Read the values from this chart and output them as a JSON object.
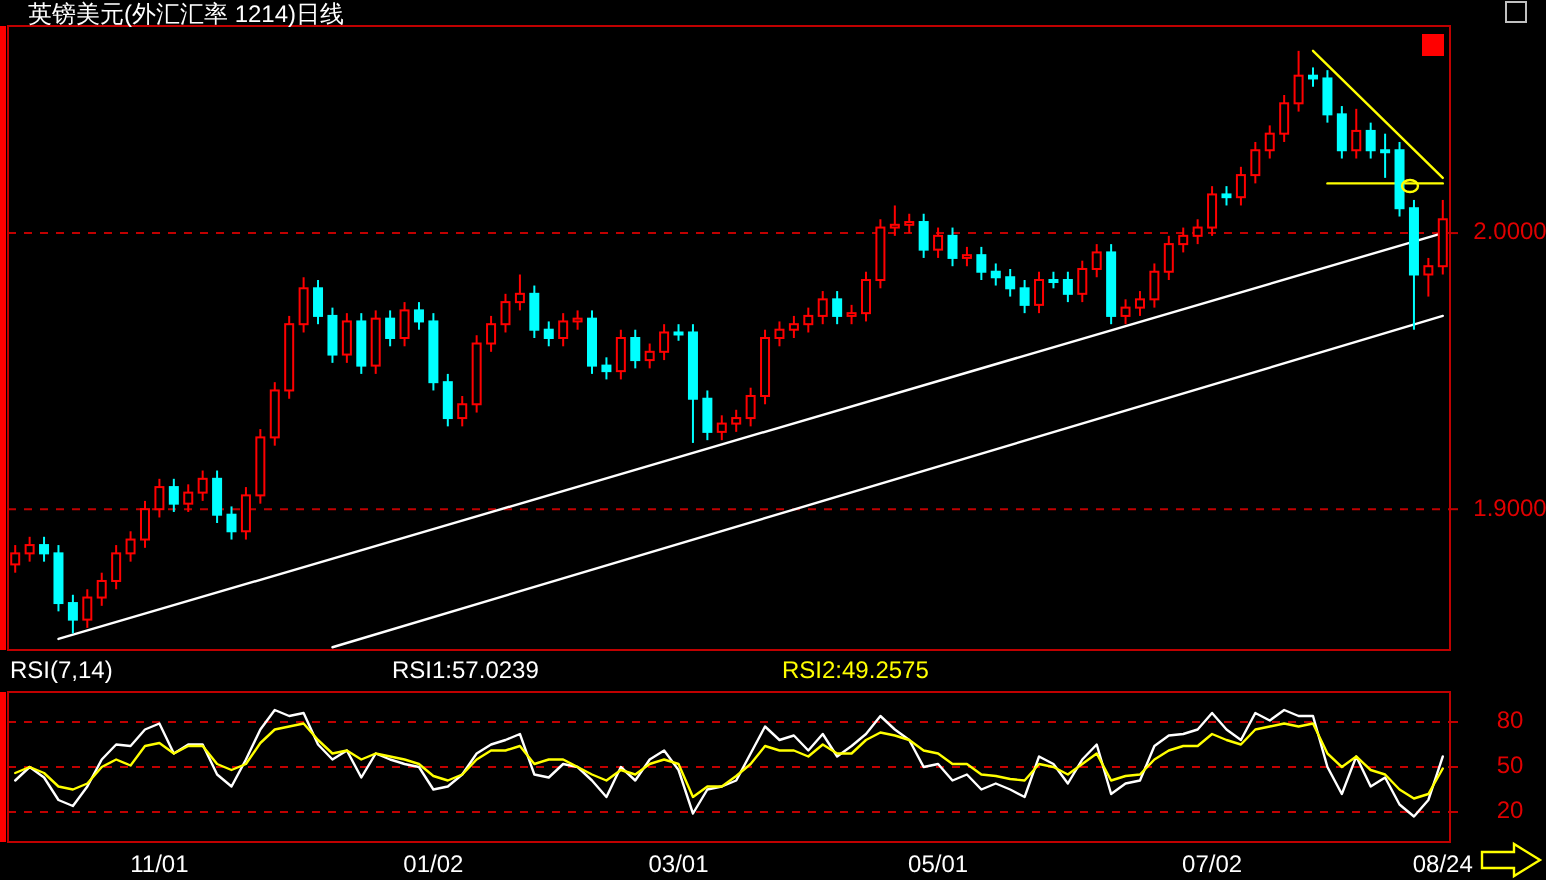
{
  "chart_data": [
    {
      "type": "candlestick",
      "title": "英镑美元(外汇汇率 1214)日线",
      "categories": [
        null,
        null,
        null,
        null,
        null,
        null,
        null,
        null,
        null,
        null,
        null,
        null,
        null,
        null,
        null,
        null,
        null,
        null,
        null,
        null,
        null,
        null,
        null,
        null,
        null,
        null,
        null,
        null,
        null,
        null,
        null,
        null,
        null,
        null,
        null,
        null,
        null,
        null,
        null,
        null,
        null,
        null,
        null,
        null,
        null,
        null,
        null,
        null,
        null,
        null,
        null,
        null,
        null,
        null,
        null,
        null,
        null,
        null,
        null,
        null,
        null,
        null,
        null,
        null,
        null,
        null,
        null,
        null,
        null,
        null,
        null,
        null,
        null,
        null,
        null,
        null,
        null,
        null,
        null,
        null,
        null,
        null,
        null,
        null,
        null,
        null,
        null,
        null,
        null,
        null,
        null,
        null,
        null,
        null,
        null,
        null,
        null,
        null,
        null,
        null
      ],
      "ohlc": [
        [
          1.88,
          1.887,
          1.877,
          1.884
        ],
        [
          1.884,
          1.89,
          1.881,
          1.887
        ],
        [
          1.887,
          1.89,
          1.881,
          1.884
        ],
        [
          1.884,
          1.887,
          1.863,
          1.866
        ],
        [
          1.866,
          1.869,
          1.855,
          1.86
        ],
        [
          1.86,
          1.871,
          1.857,
          1.868
        ],
        [
          1.868,
          1.877,
          1.865,
          1.874
        ],
        [
          1.874,
          1.887,
          1.871,
          1.884
        ],
        [
          1.884,
          1.892,
          1.881,
          1.889
        ],
        [
          1.889,
          1.903,
          1.886,
          1.9
        ],
        [
          1.9,
          1.911,
          1.897,
          1.908
        ],
        [
          1.908,
          1.911,
          1.899,
          1.902
        ],
        [
          1.902,
          1.909,
          1.899,
          1.906
        ],
        [
          1.906,
          1.914,
          1.903,
          1.911
        ],
        [
          1.911,
          1.914,
          1.895,
          1.898
        ],
        [
          1.898,
          1.901,
          1.889,
          1.892
        ],
        [
          1.892,
          1.908,
          1.889,
          1.905
        ],
        [
          1.905,
          1.929,
          1.902,
          1.926
        ],
        [
          1.926,
          1.946,
          1.923,
          1.943
        ],
        [
          1.943,
          1.97,
          1.94,
          1.967
        ],
        [
          1.967,
          1.984,
          1.964,
          1.98
        ],
        [
          1.98,
          1.983,
          1.967,
          1.97
        ],
        [
          1.97,
          1.973,
          1.953,
          1.956
        ],
        [
          1.956,
          1.971,
          1.953,
          1.968
        ],
        [
          1.968,
          1.971,
          1.949,
          1.952
        ],
        [
          1.952,
          1.972,
          1.949,
          1.969
        ],
        [
          1.969,
          1.972,
          1.959,
          1.962
        ],
        [
          1.962,
          1.975,
          1.959,
          1.972
        ],
        [
          1.972,
          1.975,
          1.965,
          1.968
        ],
        [
          1.968,
          1.971,
          1.943,
          1.946
        ],
        [
          1.946,
          1.949,
          1.93,
          1.933
        ],
        [
          1.933,
          1.941,
          1.93,
          1.938
        ],
        [
          1.938,
          1.963,
          1.935,
          1.96
        ],
        [
          1.96,
          1.97,
          1.957,
          1.967
        ],
        [
          1.967,
          1.978,
          1.964,
          1.975
        ],
        [
          1.975,
          1.985,
          1.972,
          1.978
        ],
        [
          1.978,
          1.981,
          1.962,
          1.965
        ],
        [
          1.965,
          1.968,
          1.959,
          1.962
        ],
        [
          1.962,
          1.971,
          1.959,
          1.968
        ],
        [
          1.968,
          1.972,
          1.965,
          1.969
        ],
        [
          1.969,
          1.972,
          1.949,
          1.952
        ],
        [
          1.952,
          1.955,
          1.947,
          1.95
        ],
        [
          1.95,
          1.965,
          1.947,
          1.962
        ],
        [
          1.962,
          1.965,
          1.951,
          1.954
        ],
        [
          1.954,
          1.96,
          1.951,
          1.957
        ],
        [
          1.957,
          1.967,
          1.954,
          1.964
        ],
        [
          1.964,
          1.967,
          1.961,
          1.964
        ],
        [
          1.964,
          1.967,
          1.924,
          1.94
        ],
        [
          1.94,
          1.943,
          1.925,
          1.928
        ],
        [
          1.928,
          1.934,
          1.925,
          1.931
        ],
        [
          1.931,
          1.936,
          1.928,
          1.933
        ],
        [
          1.933,
          1.944,
          1.93,
          1.941
        ],
        [
          1.941,
          1.965,
          1.938,
          1.962
        ],
        [
          1.962,
          1.968,
          1.959,
          1.965
        ],
        [
          1.965,
          1.97,
          1.962,
          1.967
        ],
        [
          1.967,
          1.973,
          1.964,
          1.97
        ],
        [
          1.97,
          1.979,
          1.967,
          1.976
        ],
        [
          1.976,
          1.979,
          1.967,
          1.97
        ],
        [
          1.97,
          1.974,
          1.967,
          1.971
        ],
        [
          1.971,
          1.986,
          1.968,
          1.983
        ],
        [
          1.983,
          2.005,
          1.98,
          2.002
        ],
        [
          2.002,
          2.01,
          1.999,
          2.003
        ],
        [
          2.003,
          2.007,
          2.0,
          2.004
        ],
        [
          2.004,
          2.007,
          1.991,
          1.994
        ],
        [
          1.994,
          2.002,
          1.991,
          1.999
        ],
        [
          1.999,
          2.002,
          1.988,
          1.991
        ],
        [
          1.991,
          1.995,
          1.988,
          1.992
        ],
        [
          1.992,
          1.995,
          1.983,
          1.986
        ],
        [
          1.986,
          1.989,
          1.981,
          1.984
        ],
        [
          1.984,
          1.987,
          1.977,
          1.98
        ],
        [
          1.98,
          1.983,
          1.971,
          1.974
        ],
        [
          1.974,
          1.986,
          1.971,
          1.983
        ],
        [
          1.983,
          1.986,
          1.98,
          1.983
        ],
        [
          1.983,
          1.986,
          1.975,
          1.978
        ],
        [
          1.978,
          1.99,
          1.975,
          1.987
        ],
        [
          1.987,
          1.996,
          1.984,
          1.993
        ],
        [
          1.993,
          1.996,
          1.967,
          1.97
        ],
        [
          1.97,
          1.976,
          1.967,
          1.973
        ],
        [
          1.973,
          1.979,
          1.97,
          1.976
        ],
        [
          1.976,
          1.989,
          1.973,
          1.986
        ],
        [
          1.986,
          1.999,
          1.983,
          1.996
        ],
        [
          1.996,
          2.002,
          1.993,
          1.999
        ],
        [
          1.999,
          2.005,
          1.996,
          2.002
        ],
        [
          2.002,
          2.017,
          1.999,
          2.014
        ],
        [
          2.014,
          2.017,
          2.01,
          2.013
        ],
        [
          2.013,
          2.024,
          2.01,
          2.021
        ],
        [
          2.021,
          2.033,
          2.018,
          2.03
        ],
        [
          2.03,
          2.039,
          2.027,
          2.036
        ],
        [
          2.036,
          2.05,
          2.033,
          2.047
        ],
        [
          2.047,
          2.066,
          2.044,
          2.057
        ],
        [
          2.057,
          2.06,
          2.053,
          2.056
        ],
        [
          2.056,
          2.059,
          2.04,
          2.043
        ],
        [
          2.043,
          2.046,
          2.027,
          2.03
        ],
        [
          2.03,
          2.045,
          2.027,
          2.037
        ],
        [
          2.037,
          2.04,
          2.027,
          2.03
        ],
        [
          2.03,
          2.036,
          2.02,
          2.03
        ],
        [
          2.03,
          2.033,
          2.006,
          2.009
        ],
        [
          2.009,
          2.012,
          1.965,
          1.985
        ],
        [
          1.985,
          1.991,
          1.977,
          1.988
        ],
        [
          1.988,
          2.012,
          1.985,
          2.005
        ]
      ],
      "colors": [
        "#ff0000",
        "#ff0000",
        "#00ffff",
        "#00ffff",
        "#00ffff",
        "#ff0000",
        "#ff0000",
        "#ff0000",
        "#ff0000",
        "#ff0000",
        "#ff0000",
        "#00ffff",
        "#ff0000",
        "#ff0000",
        "#00ffff",
        "#00ffff",
        "#ff0000",
        "#ff0000",
        "#ff0000",
        "#ff0000",
        "#ff0000",
        "#00ffff",
        "#00ffff",
        "#ff0000",
        "#00ffff",
        "#ff0000",
        "#00ffff",
        "#ff0000",
        "#00ffff",
        "#00ffff",
        "#00ffff",
        "#ff0000",
        "#ff0000",
        "#ff0000",
        "#ff0000",
        "#ff0000",
        "#00ffff",
        "#00ffff",
        "#ff0000",
        "#ff0000",
        "#00ffff",
        "#00ffff",
        "#ff0000",
        "#00ffff",
        "#ff0000",
        "#ff0000",
        "#00ffff",
        "#00ffff",
        "#00ffff",
        "#ff0000",
        "#ff0000",
        "#ff0000",
        "#ff0000",
        "#ff0000",
        "#ff0000",
        "#ff0000",
        "#ff0000",
        "#00ffff",
        "#ff0000",
        "#ff0000",
        "#ff0000",
        "#ff0000",
        "#ff0000",
        "#00ffff",
        "#ff0000",
        "#00ffff",
        "#ff0000",
        "#00ffff",
        "#00ffff",
        "#00ffff",
        "#00ffff",
        "#ff0000",
        "#00ffff",
        "#00ffff",
        "#ff0000",
        "#ff0000",
        "#00ffff",
        "#ff0000",
        "#ff0000",
        "#ff0000",
        "#ff0000",
        "#ff0000",
        "#ff0000",
        "#ff0000",
        "#00ffff",
        "#ff0000",
        "#ff0000",
        "#ff0000",
        "#ff0000",
        "#ff0000",
        "#00ffff",
        "#00ffff",
        "#00ffff",
        "#ff0000",
        "#00ffff",
        "#00ffff",
        "#00ffff",
        "#00ffff",
        "#ff0000",
        "#ff0000"
      ],
      "series": [
        {
          "type": "line",
          "color": "#ffffff",
          "values": [
            null,
            null,
            null,
            1.853,
            null,
            null,
            null,
            null,
            null,
            null,
            null,
            null,
            null,
            null,
            null,
            null,
            null,
            null,
            null,
            null,
            null,
            null,
            null,
            null,
            null,
            null,
            null,
            null,
            null,
            null,
            null,
            null,
            null,
            null,
            null,
            null,
            null,
            null,
            null,
            null,
            null,
            null,
            null,
            null,
            null,
            null,
            null,
            null,
            null,
            null,
            null,
            null,
            null,
            null,
            null,
            null,
            null,
            null,
            null,
            null,
            null,
            null,
            null,
            null,
            null,
            null,
            null,
            null,
            null,
            null,
            null,
            null,
            null,
            null,
            null,
            null,
            null,
            null,
            null,
            null,
            null,
            null,
            null,
            null,
            null,
            null,
            null,
            null,
            null,
            null,
            null,
            null,
            null,
            null,
            null,
            null,
            null,
            null,
            null,
            2.0
          ]
        },
        {
          "type": "line",
          "color": "#ffffff",
          "values": [
            null,
            null,
            null,
            null,
            null,
            null,
            null,
            null,
            null,
            null,
            null,
            null,
            null,
            null,
            null,
            null,
            null,
            null,
            null,
            null,
            null,
            null,
            1.85,
            null,
            null,
            null,
            null,
            null,
            null,
            null,
            null,
            null,
            null,
            null,
            null,
            null,
            null,
            null,
            null,
            null,
            null,
            null,
            null,
            null,
            null,
            null,
            null,
            null,
            null,
            null,
            null,
            null,
            null,
            null,
            null,
            null,
            null,
            null,
            null,
            null,
            null,
            null,
            null,
            null,
            null,
            null,
            null,
            null,
            null,
            null,
            null,
            null,
            null,
            null,
            null,
            null,
            null,
            null,
            null,
            null,
            null,
            null,
            null,
            null,
            null,
            null,
            null,
            null,
            null,
            null,
            null,
            null,
            null,
            null,
            null,
            null,
            null,
            null,
            null,
            1.97
          ]
        },
        {
          "type": "line",
          "color": "#ffff00",
          "values": [
            null,
            null,
            null,
            null,
            null,
            null,
            null,
            null,
            null,
            null,
            null,
            null,
            null,
            null,
            null,
            null,
            null,
            null,
            null,
            null,
            null,
            null,
            null,
            null,
            null,
            null,
            null,
            null,
            null,
            null,
            null,
            null,
            null,
            null,
            null,
            null,
            null,
            null,
            null,
            null,
            null,
            null,
            null,
            null,
            null,
            null,
            null,
            null,
            null,
            null,
            null,
            null,
            null,
            null,
            null,
            null,
            null,
            null,
            null,
            null,
            null,
            null,
            null,
            null,
            null,
            null,
            null,
            null,
            null,
            null,
            null,
            null,
            null,
            null,
            null,
            null,
            null,
            null,
            null,
            null,
            null,
            null,
            null,
            null,
            null,
            null,
            null,
            null,
            null,
            null,
            2.066,
            null,
            null,
            null,
            null,
            null,
            null,
            null,
            null,
            2.02
          ]
        },
        {
          "type": "line",
          "color": "#ffff00",
          "values": [
            null,
            null,
            null,
            null,
            null,
            null,
            null,
            null,
            null,
            null,
            null,
            null,
            null,
            null,
            null,
            null,
            null,
            null,
            null,
            null,
            null,
            null,
            null,
            null,
            null,
            null,
            null,
            null,
            null,
            null,
            null,
            null,
            null,
            null,
            null,
            null,
            null,
            null,
            null,
            null,
            null,
            null,
            null,
            null,
            null,
            null,
            null,
            null,
            null,
            null,
            null,
            null,
            null,
            null,
            null,
            null,
            null,
            null,
            null,
            null,
            null,
            null,
            null,
            null,
            null,
            null,
            null,
            null,
            null,
            null,
            null,
            null,
            null,
            null,
            null,
            null,
            null,
            null,
            null,
            null,
            null,
            null,
            null,
            null,
            null,
            null,
            null,
            null,
            null,
            null,
            null,
            2.018,
            null,
            null,
            null,
            null,
            null,
            null,
            null,
            2.018
          ]
        }
      ],
      "ylim": [
        1.849,
        2.075
      ],
      "yticks": [
        {
          "value": 2.0,
          "label": "2.0000"
        },
        {
          "value": 1.9,
          "label": "1.9000"
        }
      ],
      "grid": "y",
      "tick_labels": "y"
    },
    {
      "type": "line",
      "title": "RSI(7,14)",
      "categories": [
        null,
        null,
        null,
        null,
        null,
        null,
        null,
        null,
        null,
        null,
        "11/01",
        null,
        null,
        null,
        null,
        null,
        null,
        null,
        null,
        null,
        null,
        null,
        null,
        null,
        null,
        null,
        null,
        null,
        null,
        "01/02",
        null,
        null,
        null,
        null,
        null,
        null,
        null,
        null,
        null,
        null,
        null,
        null,
        null,
        null,
        null,
        null,
        "03/01",
        null,
        null,
        null,
        null,
        null,
        null,
        null,
        null,
        null,
        null,
        null,
        null,
        null,
        null,
        null,
        null,
        null,
        "05/01",
        null,
        null,
        null,
        null,
        null,
        null,
        null,
        null,
        null,
        null,
        null,
        null,
        null,
        null,
        null,
        null,
        null,
        null,
        "07/02",
        null,
        null,
        null,
        null,
        null,
        null,
        null,
        null,
        null,
        null,
        null,
        null,
        null,
        null,
        null,
        "08/24"
      ],
      "series": [
        {
          "name": "RSI1:57.0239",
          "color": "#ffffff",
          "values": [
            41,
            50,
            43,
            28,
            24,
            37,
            55,
            65,
            64,
            75,
            79,
            59,
            65,
            65,
            45,
            37,
            55,
            75,
            88,
            84,
            86,
            65,
            55,
            61,
            43,
            59,
            55,
            52,
            50,
            35,
            37,
            45,
            59,
            65,
            68,
            72,
            45,
            43,
            52,
            50,
            41,
            30,
            50,
            41,
            55,
            61,
            48,
            19,
            35,
            37,
            41,
            59,
            77,
            68,
            71,
            61,
            72,
            57,
            64,
            72,
            84,
            75,
            68,
            50,
            52,
            41,
            45,
            35,
            39,
            35,
            30,
            57,
            52,
            39,
            55,
            65,
            32,
            39,
            41,
            64,
            71,
            72,
            75,
            86,
            75,
            68,
            86,
            81,
            88,
            84,
            84,
            50,
            32,
            57,
            37,
            43,
            25,
            17,
            28,
            57
          ]
        },
        {
          "name": "RSI2:49.2575",
          "color": "#ffff00",
          "values": [
            46,
            50,
            46,
            37,
            35,
            39,
            50,
            55,
            51,
            64,
            66,
            59,
            64,
            64,
            52,
            48,
            52,
            66,
            75,
            77,
            79,
            68,
            59,
            61,
            55,
            59,
            57,
            55,
            52,
            44,
            41,
            45,
            55,
            61,
            61,
            64,
            52,
            55,
            55,
            50,
            45,
            41,
            48,
            45,
            52,
            55,
            52,
            30,
            37,
            37,
            44,
            52,
            64,
            61,
            61,
            57,
            65,
            59,
            59,
            68,
            73,
            71,
            68,
            61,
            59,
            52,
            52,
            45,
            44,
            42,
            41,
            52,
            50,
            45,
            52,
            59,
            41,
            44,
            45,
            55,
            61,
            64,
            64,
            72,
            68,
            65,
            75,
            77,
            79,
            77,
            79,
            59,
            50,
            57,
            48,
            45,
            35,
            29,
            32,
            49
          ]
        }
      ],
      "ylim": [
        0,
        100
      ],
      "yticks": [
        20,
        50,
        80
      ],
      "grid": "y",
      "legend": "top"
    }
  ]
}
